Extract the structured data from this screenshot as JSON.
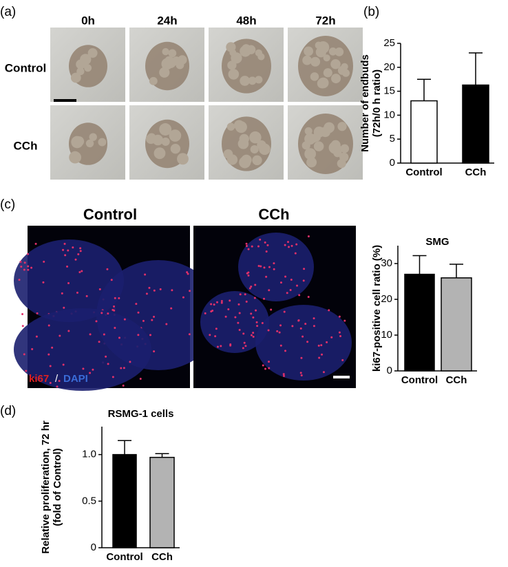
{
  "figure": {
    "panel_labels": [
      "(a)",
      "(b)",
      "(c)",
      "(d)"
    ],
    "timepoints": [
      "0h",
      "24h",
      "48h",
      "72h"
    ],
    "row_labels": [
      "Control",
      "CCh"
    ],
    "image_titles": [
      "Control",
      "CCh"
    ],
    "stain_labels": [
      "ki67",
      "/",
      "DAPI"
    ]
  },
  "chart_data": [
    {
      "type": "bar",
      "ylabel": [
        "Number of endbuds",
        "(72h/0 h ratio)"
      ],
      "categories": [
        "Control",
        "CCh"
      ],
      "values": [
        13,
        16.3
      ],
      "errors": [
        4.5,
        6.7
      ],
      "colors": [
        "#ffffff",
        "#000000"
      ],
      "ylim": [
        0,
        25
      ],
      "yticks": [
        0,
        5,
        10,
        15,
        20,
        25
      ]
    },
    {
      "type": "bar",
      "title": "SMG",
      "ylabel": [
        "ki67-positive cell ratio (%)"
      ],
      "categories": [
        "Control",
        "CCh"
      ],
      "values": [
        27,
        26
      ],
      "errors": [
        5.2,
        3.8
      ],
      "colors": [
        "#000000",
        "#b3b3b3"
      ],
      "ylim": [
        0,
        35
      ],
      "yticks": [
        0,
        10,
        20,
        30
      ]
    },
    {
      "type": "bar",
      "title": "RSMG-1 cells",
      "ylabel": [
        "Relative proliferation, 72 hr",
        "(fold of Control)"
      ],
      "categories": [
        "Control",
        "CCh"
      ],
      "values": [
        1.0,
        0.97
      ],
      "errors": [
        0.15,
        0.04
      ],
      "colors": [
        "#000000",
        "#b3b3b3"
      ],
      "ylim": [
        0,
        1.3
      ],
      "yticks": [
        0,
        0.5,
        {
          "value": 1,
          "label": "1.0"
        }
      ]
    }
  ]
}
